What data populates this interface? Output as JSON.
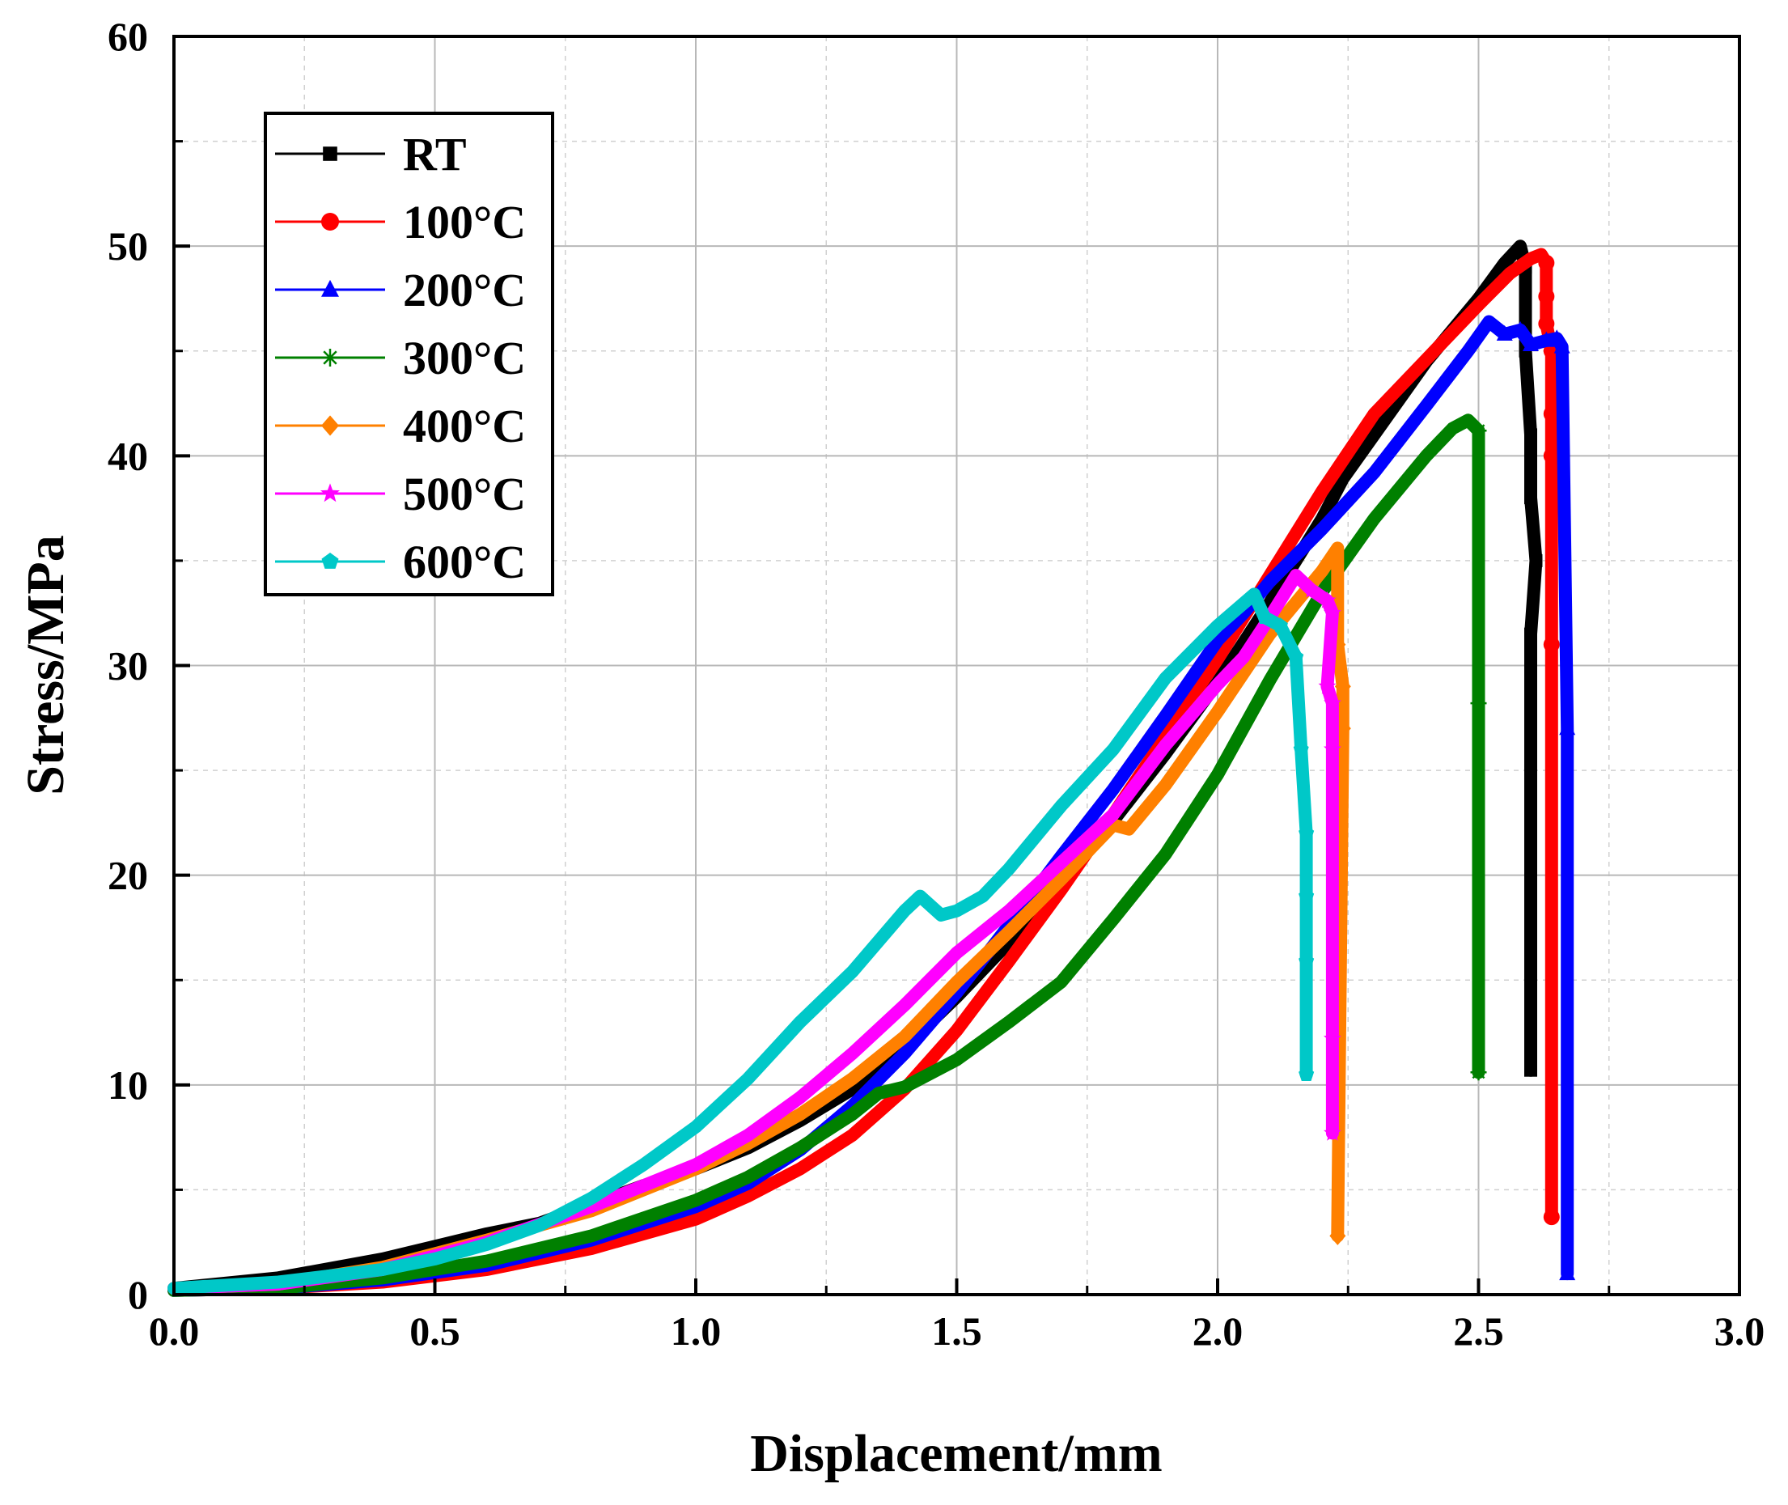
{
  "chart_data": {
    "type": "line",
    "title": "",
    "xlabel": "Displacement/mm",
    "ylabel": "Stress/MPa",
    "xlim": [
      0,
      3.0
    ],
    "ylim": [
      0,
      60
    ],
    "x_ticks": [
      "0.0",
      "0.5",
      "1.0",
      "1.5",
      "2.0",
      "2.5",
      "3.0"
    ],
    "y_ticks": [
      "0",
      "10",
      "20",
      "30",
      "40",
      "50",
      "60"
    ],
    "grid": true,
    "legend_position": "top-left",
    "series": [
      {
        "name": "RT",
        "color": "#000000",
        "marker": "square",
        "points": [
          [
            0,
            0.3
          ],
          [
            0.2,
            0.8
          ],
          [
            0.4,
            1.7
          ],
          [
            0.5,
            2.3
          ],
          [
            0.6,
            2.9
          ],
          [
            0.7,
            3.4
          ],
          [
            0.8,
            4.3
          ],
          [
            0.9,
            5.2
          ],
          [
            1.0,
            6.0
          ],
          [
            1.1,
            7.0
          ],
          [
            1.2,
            8.3
          ],
          [
            1.3,
            9.8
          ],
          [
            1.4,
            11.8
          ],
          [
            1.5,
            14.2
          ],
          [
            1.6,
            16.8
          ],
          [
            1.7,
            19.6
          ],
          [
            1.8,
            22.6
          ],
          [
            1.9,
            25.8
          ],
          [
            2.0,
            29.2
          ],
          [
            2.1,
            33.0
          ],
          [
            2.2,
            37.0
          ],
          [
            2.24,
            38.9
          ],
          [
            2.3,
            41.0
          ],
          [
            2.4,
            44.5
          ],
          [
            2.5,
            47.5
          ],
          [
            2.55,
            49.2
          ],
          [
            2.58,
            50.0
          ],
          [
            2.59,
            49.0
          ],
          [
            2.59,
            45.0
          ],
          [
            2.6,
            41.0
          ],
          [
            2.6,
            38.0
          ],
          [
            2.61,
            35.0
          ],
          [
            2.6,
            31.5
          ],
          [
            2.6,
            19.4
          ],
          [
            2.6,
            10.7
          ]
        ]
      },
      {
        "name": "100°C",
        "color": "#ff0000",
        "marker": "circle",
        "points": [
          [
            0,
            0.2
          ],
          [
            0.2,
            0.3
          ],
          [
            0.4,
            0.6
          ],
          [
            0.6,
            1.2
          ],
          [
            0.8,
            2.2
          ],
          [
            1.0,
            3.6
          ],
          [
            1.1,
            4.7
          ],
          [
            1.2,
            6.0
          ],
          [
            1.3,
            7.6
          ],
          [
            1.4,
            9.8
          ],
          [
            1.5,
            12.6
          ],
          [
            1.6,
            15.9
          ],
          [
            1.7,
            19.3
          ],
          [
            1.8,
            22.9
          ],
          [
            1.9,
            26.6
          ],
          [
            2.0,
            30.3
          ],
          [
            2.1,
            34.3
          ],
          [
            2.2,
            38.3
          ],
          [
            2.3,
            42.0
          ],
          [
            2.4,
            44.6
          ],
          [
            2.5,
            47.2
          ],
          [
            2.56,
            48.7
          ],
          [
            2.6,
            49.4
          ],
          [
            2.62,
            49.6
          ],
          [
            2.63,
            49.2
          ],
          [
            2.63,
            47.6
          ],
          [
            2.63,
            46.3
          ],
          [
            2.64,
            45.0
          ],
          [
            2.64,
            42.0
          ],
          [
            2.64,
            40.0
          ],
          [
            2.64,
            31.0
          ],
          [
            2.64,
            3.7
          ]
        ]
      },
      {
        "name": "200°C",
        "color": "#0000ff",
        "marker": "triangle",
        "points": [
          [
            0,
            0.2
          ],
          [
            0.2,
            0.3
          ],
          [
            0.4,
            0.7
          ],
          [
            0.6,
            1.4
          ],
          [
            0.8,
            2.6
          ],
          [
            1.0,
            4.2
          ],
          [
            1.1,
            5.3
          ],
          [
            1.2,
            6.9
          ],
          [
            1.3,
            9.0
          ],
          [
            1.4,
            11.5
          ],
          [
            1.5,
            14.4
          ],
          [
            1.6,
            17.6
          ],
          [
            1.7,
            20.9
          ],
          [
            1.8,
            24.1
          ],
          [
            1.9,
            27.6
          ],
          [
            2.0,
            31.2
          ],
          [
            2.05,
            32.5
          ],
          [
            2.1,
            34.0
          ],
          [
            2.2,
            36.5
          ],
          [
            2.3,
            39.2
          ],
          [
            2.4,
            42.4
          ],
          [
            2.48,
            45.0
          ],
          [
            2.52,
            46.4
          ],
          [
            2.55,
            45.8
          ],
          [
            2.58,
            46.0
          ],
          [
            2.6,
            45.3
          ],
          [
            2.63,
            45.5
          ],
          [
            2.65,
            45.6
          ],
          [
            2.66,
            45.2
          ],
          [
            2.67,
            27.0
          ],
          [
            2.67,
            1.0
          ]
        ]
      },
      {
        "name": "300°C",
        "color": "#008000",
        "marker": "asterisk",
        "points": [
          [
            0,
            0.2
          ],
          [
            0.2,
            0.3
          ],
          [
            0.4,
            0.8
          ],
          [
            0.6,
            1.6
          ],
          [
            0.8,
            2.8
          ],
          [
            1.0,
            4.5
          ],
          [
            1.1,
            5.6
          ],
          [
            1.2,
            7.0
          ],
          [
            1.3,
            8.6
          ],
          [
            1.35,
            9.6
          ],
          [
            1.4,
            9.9
          ],
          [
            1.5,
            11.2
          ],
          [
            1.6,
            13.0
          ],
          [
            1.7,
            14.9
          ],
          [
            1.8,
            17.9
          ],
          [
            1.9,
            21.0
          ],
          [
            2.0,
            24.8
          ],
          [
            2.1,
            29.3
          ],
          [
            2.2,
            33.5
          ],
          [
            2.3,
            37.0
          ],
          [
            2.4,
            40.0
          ],
          [
            2.45,
            41.3
          ],
          [
            2.48,
            41.7
          ],
          [
            2.5,
            41.2
          ],
          [
            2.5,
            28.2
          ],
          [
            2.5,
            10.6
          ]
        ]
      },
      {
        "name": "400°C",
        "color": "#ff8000",
        "marker": "diamond",
        "points": [
          [
            0,
            0.3
          ],
          [
            0.2,
            0.5
          ],
          [
            0.4,
            1.3
          ],
          [
            0.6,
            2.6
          ],
          [
            0.8,
            4.0
          ],
          [
            1.0,
            6.0
          ],
          [
            1.1,
            7.2
          ],
          [
            1.2,
            8.6
          ],
          [
            1.3,
            10.3
          ],
          [
            1.4,
            12.3
          ],
          [
            1.5,
            14.9
          ],
          [
            1.6,
            17.3
          ],
          [
            1.7,
            19.8
          ],
          [
            1.8,
            22.4
          ],
          [
            1.83,
            22.2
          ],
          [
            1.9,
            24.3
          ],
          [
            2.0,
            27.8
          ],
          [
            2.1,
            31.5
          ],
          [
            2.2,
            34.5
          ],
          [
            2.23,
            35.6
          ],
          [
            2.23,
            31.0
          ],
          [
            2.24,
            29.0
          ],
          [
            2.24,
            27.0
          ],
          [
            2.23,
            2.8
          ]
        ]
      },
      {
        "name": "500°C",
        "color": "#ff00ff",
        "marker": "star",
        "points": [
          [
            0,
            0.3
          ],
          [
            0.2,
            0.5
          ],
          [
            0.4,
            1.2
          ],
          [
            0.6,
            2.5
          ],
          [
            0.8,
            4.2
          ],
          [
            1.0,
            6.2
          ],
          [
            1.1,
            7.6
          ],
          [
            1.2,
            9.4
          ],
          [
            1.3,
            11.5
          ],
          [
            1.4,
            13.8
          ],
          [
            1.5,
            16.3
          ],
          [
            1.6,
            18.3
          ],
          [
            1.7,
            20.6
          ],
          [
            1.8,
            22.9
          ],
          [
            1.9,
            26.2
          ],
          [
            2.0,
            29.1
          ],
          [
            2.05,
            30.4
          ],
          [
            2.1,
            32.3
          ],
          [
            2.15,
            34.3
          ],
          [
            2.18,
            33.6
          ],
          [
            2.21,
            33.1
          ],
          [
            2.22,
            32.5
          ],
          [
            2.21,
            29.0
          ],
          [
            2.22,
            28.2
          ],
          [
            2.22,
            26.0
          ],
          [
            2.22,
            12.2
          ],
          [
            2.22,
            7.7
          ]
        ]
      },
      {
        "name": "600°C",
        "color": "#00c8c8",
        "marker": "pentagon",
        "points": [
          [
            0,
            0.3
          ],
          [
            0.2,
            0.6
          ],
          [
            0.4,
            1.2
          ],
          [
            0.5,
            1.7
          ],
          [
            0.6,
            2.4
          ],
          [
            0.7,
            3.3
          ],
          [
            0.8,
            4.6
          ],
          [
            0.9,
            6.2
          ],
          [
            1.0,
            8.0
          ],
          [
            1.1,
            10.3
          ],
          [
            1.2,
            13.0
          ],
          [
            1.3,
            15.4
          ],
          [
            1.4,
            18.3
          ],
          [
            1.43,
            19.0
          ],
          [
            1.47,
            18.1
          ],
          [
            1.5,
            18.3
          ],
          [
            1.55,
            19.0
          ],
          [
            1.6,
            20.3
          ],
          [
            1.7,
            23.3
          ],
          [
            1.8,
            26.0
          ],
          [
            1.9,
            29.4
          ],
          [
            2.0,
            31.9
          ],
          [
            2.07,
            33.4
          ],
          [
            2.09,
            32.3
          ],
          [
            2.12,
            31.9
          ],
          [
            2.15,
            30.4
          ],
          [
            2.16,
            26.0
          ],
          [
            2.17,
            22.0
          ],
          [
            2.17,
            19.0
          ],
          [
            2.17,
            15.9
          ],
          [
            2.17,
            10.5
          ]
        ]
      }
    ]
  }
}
